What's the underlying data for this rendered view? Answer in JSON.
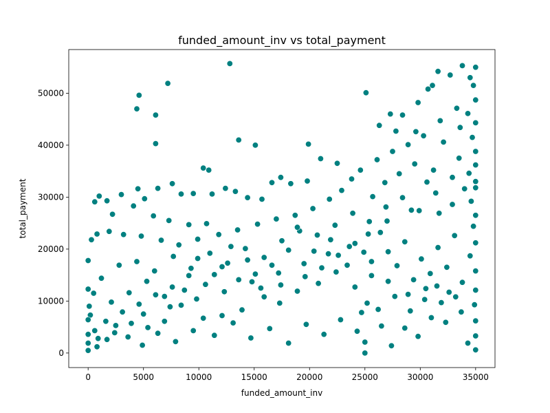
{
  "chart_data": {
    "type": "scatter",
    "title": "funded_amount_inv vs total_payment",
    "xlabel": "funded_amount_inv",
    "ylabel": "total_payment",
    "xlim": [
      -1750,
      36750
    ],
    "ylim": [
      -2800,
      58400
    ],
    "xticks": [
      0,
      5000,
      10000,
      15000,
      20000,
      25000,
      30000,
      35000
    ],
    "yticks": [
      0,
      10000,
      20000,
      30000,
      40000,
      50000
    ],
    "grid": false,
    "legend": "none",
    "colors": {
      "point_fill": "#008080",
      "point_edge": "#ffffff"
    },
    "series": [
      {
        "points": [
          [
            12800,
            55700
          ],
          [
            33800,
            55300
          ],
          [
            35000,
            55000
          ],
          [
            31600,
            54200
          ],
          [
            32700,
            53500
          ],
          [
            34500,
            53000
          ],
          [
            31100,
            51500
          ],
          [
            7200,
            51900
          ],
          [
            4600,
            49600
          ],
          [
            25100,
            50100
          ],
          [
            34800,
            51500
          ],
          [
            4400,
            47000
          ],
          [
            6100,
            45800
          ],
          [
            29800,
            48200
          ],
          [
            33300,
            47100
          ],
          [
            30700,
            50800
          ],
          [
            13600,
            41000
          ],
          [
            15100,
            40000
          ],
          [
            6100,
            40300
          ],
          [
            19900,
            40200
          ],
          [
            27300,
            46000
          ],
          [
            28400,
            45800
          ],
          [
            31800,
            44700
          ],
          [
            33600,
            43400
          ],
          [
            34300,
            46100
          ],
          [
            26300,
            43800
          ],
          [
            27800,
            42700
          ],
          [
            29600,
            42600
          ],
          [
            10400,
            35600
          ],
          [
            10900,
            35200
          ],
          [
            12400,
            31700
          ],
          [
            13300,
            31100
          ],
          [
            14400,
            29900
          ],
          [
            15700,
            29600
          ],
          [
            16600,
            32800
          ],
          [
            17400,
            33800
          ],
          [
            18300,
            32600
          ],
          [
            19800,
            33100
          ],
          [
            7600,
            32600
          ],
          [
            6300,
            31700
          ],
          [
            4500,
            31600
          ],
          [
            5100,
            29700
          ],
          [
            8400,
            30600
          ],
          [
            9500,
            30700
          ],
          [
            11200,
            30600
          ],
          [
            3000,
            30500
          ],
          [
            1700,
            29300
          ],
          [
            600,
            29100
          ],
          [
            1000,
            30200
          ],
          [
            2200,
            26700
          ],
          [
            4100,
            28300
          ],
          [
            5900,
            26400
          ],
          [
            7300,
            25500
          ],
          [
            9100,
            24700
          ],
          [
            10700,
            24900
          ],
          [
            300,
            21800
          ],
          [
            800,
            22900
          ],
          [
            1900,
            23400
          ],
          [
            3200,
            22800
          ],
          [
            4800,
            22500
          ],
          [
            6600,
            21700
          ],
          [
            8200,
            20800
          ],
          [
            9900,
            21900
          ],
          [
            11800,
            22800
          ],
          [
            13500,
            23700
          ],
          [
            15300,
            24800
          ],
          [
            17000,
            25800
          ],
          [
            18700,
            26500
          ],
          [
            20300,
            27800
          ],
          [
            21800,
            29600
          ],
          [
            22900,
            31300
          ],
          [
            23800,
            33500
          ],
          [
            24600,
            35200
          ],
          [
            21000,
            37400
          ],
          [
            22500,
            36500
          ],
          [
            26100,
            37200
          ],
          [
            27500,
            38800
          ],
          [
            28900,
            40100
          ],
          [
            30300,
            41800
          ],
          [
            32100,
            40600
          ],
          [
            29500,
            36400
          ],
          [
            31200,
            35200
          ],
          [
            33500,
            37500
          ],
          [
            34700,
            41500
          ],
          [
            35000,
            38800
          ],
          [
            26800,
            32800
          ],
          [
            25700,
            30100
          ],
          [
            28100,
            34500
          ],
          [
            30600,
            32900
          ],
          [
            34000,
            31600
          ],
          [
            35000,
            33000
          ],
          [
            34600,
            29200
          ],
          [
            32900,
            28600
          ],
          [
            31700,
            26900
          ],
          [
            29200,
            27500
          ],
          [
            27000,
            25400
          ],
          [
            25300,
            22900
          ],
          [
            23600,
            20500
          ],
          [
            21700,
            19100
          ],
          [
            19500,
            17200
          ],
          [
            17200,
            15400
          ],
          [
            14800,
            13700
          ],
          [
            12300,
            11800
          ],
          [
            9800,
            10400
          ],
          [
            7400,
            8900
          ],
          [
            5000,
            7500
          ],
          [
            2500,
            5300
          ],
          [
            0,
            3600
          ],
          [
            800,
            1200
          ],
          [
            1700,
            2600
          ],
          [
            3600,
            3100
          ],
          [
            4900,
            1500
          ],
          [
            6300,
            3800
          ],
          [
            7900,
            2200
          ],
          [
            9500,
            4300
          ],
          [
            11400,
            3400
          ],
          [
            13100,
            5800
          ],
          [
            14700,
            2900
          ],
          [
            16400,
            4700
          ],
          [
            18100,
            1900
          ],
          [
            19700,
            5500
          ],
          [
            21300,
            3600
          ],
          [
            22800,
            6400
          ],
          [
            24300,
            4200
          ],
          [
            25000,
            0
          ],
          [
            25000,
            2100
          ],
          [
            26500,
            5200
          ],
          [
            27400,
            1400
          ],
          [
            28600,
            4800
          ],
          [
            29800,
            3200
          ],
          [
            31000,
            6800
          ],
          [
            32300,
            5900
          ],
          [
            33700,
            7900
          ],
          [
            34300,
            1900
          ],
          [
            35000,
            600
          ],
          [
            35000,
            3300
          ],
          [
            34900,
            9300
          ],
          [
            33200,
            10800
          ],
          [
            31900,
            9700
          ],
          [
            30500,
            12400
          ],
          [
            28900,
            11300
          ],
          [
            27100,
            13800
          ],
          [
            25600,
            14900
          ],
          [
            24100,
            12700
          ],
          [
            22400,
            15600
          ],
          [
            20800,
            13400
          ],
          [
            18900,
            11900
          ],
          [
            17300,
            9600
          ],
          [
            15600,
            12500
          ],
          [
            13900,
            8300
          ],
          [
            12100,
            7200
          ],
          [
            10400,
            6700
          ],
          [
            8700,
            12100
          ],
          [
            6900,
            10900
          ],
          [
            5300,
            13800
          ],
          [
            3700,
            11600
          ],
          [
            2100,
            9800
          ],
          [
            500,
            11500
          ],
          [
            200,
            7300
          ],
          [
            1200,
            14400
          ],
          [
            2800,
            16900
          ],
          [
            4400,
            17600
          ],
          [
            6000,
            15800
          ],
          [
            7700,
            18600
          ],
          [
            9300,
            16300
          ],
          [
            11000,
            19200
          ],
          [
            12600,
            17300
          ],
          [
            14200,
            20100
          ],
          [
            15900,
            18400
          ],
          [
            17500,
            21600
          ],
          [
            19100,
            23500
          ],
          [
            20700,
            22700
          ],
          [
            22300,
            24600
          ],
          [
            23900,
            26900
          ],
          [
            25400,
            25300
          ],
          [
            26900,
            28100
          ],
          [
            28400,
            29900
          ],
          [
            29900,
            27400
          ],
          [
            31400,
            30800
          ],
          [
            32900,
            33800
          ],
          [
            34400,
            34600
          ],
          [
            34800,
            24400
          ],
          [
            33100,
            22600
          ],
          [
            31600,
            20300
          ],
          [
            30100,
            18100
          ],
          [
            28600,
            21400
          ],
          [
            27100,
            19500
          ],
          [
            25600,
            17600
          ],
          [
            24100,
            21100
          ],
          [
            22600,
            18800
          ],
          [
            21100,
            16400
          ],
          [
            19600,
            14700
          ],
          [
            18100,
            19800
          ],
          [
            16600,
            16900
          ],
          [
            15100,
            15200
          ],
          [
            13600,
            14100
          ],
          [
            12100,
            16600
          ],
          [
            10600,
            13200
          ],
          [
            9100,
            14900
          ],
          [
            7600,
            12700
          ],
          [
            6100,
            11200
          ],
          [
            4600,
            9400
          ],
          [
            3100,
            7900
          ],
          [
            1600,
            6100
          ],
          [
            100,
            9000
          ],
          [
            600,
            4300
          ],
          [
            24700,
            7800
          ],
          [
            25200,
            9600
          ],
          [
            26200,
            8400
          ],
          [
            27700,
            10900
          ],
          [
            29100,
            8100
          ],
          [
            30400,
            10300
          ],
          [
            31500,
            12900
          ],
          [
            32600,
            11700
          ],
          [
            33800,
            13600
          ],
          [
            35000,
            15800
          ],
          [
            35000,
            21200
          ],
          [
            35000,
            26500
          ],
          [
            35000,
            31800
          ],
          [
            35000,
            36200
          ],
          [
            35000,
            44300
          ],
          [
            35000,
            48700
          ],
          [
            35000,
            12100
          ],
          [
            35000,
            6200
          ],
          [
            34500,
            18700
          ],
          [
            32400,
            16500
          ],
          [
            30900,
            15300
          ],
          [
            29400,
            14100
          ],
          [
            27900,
            16800
          ],
          [
            26400,
            23200
          ],
          [
            24900,
            19400
          ],
          [
            23400,
            16900
          ],
          [
            21900,
            21800
          ],
          [
            20400,
            19600
          ],
          [
            18900,
            24200
          ],
          [
            17400,
            13100
          ],
          [
            15900,
            10800
          ],
          [
            14400,
            17900
          ],
          [
            12900,
            20500
          ],
          [
            11400,
            15100
          ],
          [
            9900,
            18200
          ],
          [
            8400,
            9200
          ],
          [
            6900,
            6100
          ],
          [
            5400,
            4900
          ],
          [
            3900,
            5700
          ],
          [
            2400,
            3900
          ],
          [
            900,
            2800
          ],
          [
            0,
            500
          ],
          [
            0,
            1900
          ],
          [
            0,
            6400
          ],
          [
            0,
            12300
          ],
          [
            0,
            17800
          ]
        ]
      }
    ]
  }
}
